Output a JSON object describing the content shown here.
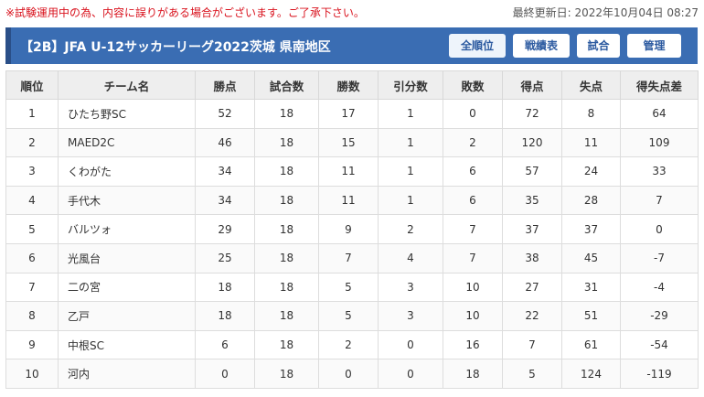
{
  "notice": "※試験運用中の為、内容に誤りがある場合がございます。ご了承下さい。",
  "last_updated": "最終更新日: 2022年10月04日 08:27",
  "header": {
    "title": "【2B】JFA U-12サッカーリーグ2022茨城 県南地区",
    "buttons": {
      "all": "全順位",
      "results": "戦績表",
      "matches": "試合",
      "admin": "管理"
    }
  },
  "table": {
    "columns": [
      "順位",
      "チーム名",
      "勝点",
      "試合数",
      "勝数",
      "引分数",
      "敗数",
      "得点",
      "失点",
      "得失点差"
    ],
    "rows": [
      {
        "rank": "1",
        "team": "ひたち野SC",
        "points": "52",
        "played": "18",
        "wins": "17",
        "draws": "1",
        "losses": "0",
        "gf": "72",
        "ga": "8",
        "gd": "64"
      },
      {
        "rank": "2",
        "team": "MAED2C",
        "points": "46",
        "played": "18",
        "wins": "15",
        "draws": "1",
        "losses": "2",
        "gf": "120",
        "ga": "11",
        "gd": "109"
      },
      {
        "rank": "3",
        "team": "くわがた",
        "points": "34",
        "played": "18",
        "wins": "11",
        "draws": "1",
        "losses": "6",
        "gf": "57",
        "ga": "24",
        "gd": "33"
      },
      {
        "rank": "4",
        "team": "手代木",
        "points": "34",
        "played": "18",
        "wins": "11",
        "draws": "1",
        "losses": "6",
        "gf": "35",
        "ga": "28",
        "gd": "7"
      },
      {
        "rank": "5",
        "team": "バルツォ",
        "points": "29",
        "played": "18",
        "wins": "9",
        "draws": "2",
        "losses": "7",
        "gf": "37",
        "ga": "37",
        "gd": "0"
      },
      {
        "rank": "6",
        "team": "光風台",
        "points": "25",
        "played": "18",
        "wins": "7",
        "draws": "4",
        "losses": "7",
        "gf": "38",
        "ga": "45",
        "gd": "-7"
      },
      {
        "rank": "7",
        "team": "二の宮",
        "points": "18",
        "played": "18",
        "wins": "5",
        "draws": "3",
        "losses": "10",
        "gf": "27",
        "ga": "31",
        "gd": "-4"
      },
      {
        "rank": "8",
        "team": "乙戸",
        "points": "18",
        "played": "18",
        "wins": "5",
        "draws": "3",
        "losses": "10",
        "gf": "22",
        "ga": "51",
        "gd": "-29"
      },
      {
        "rank": "9",
        "team": "中根SC",
        "points": "6",
        "played": "18",
        "wins": "2",
        "draws": "0",
        "losses": "16",
        "gf": "7",
        "ga": "61",
        "gd": "-54"
      },
      {
        "rank": "10",
        "team": "河内",
        "points": "0",
        "played": "18",
        "wins": "0",
        "draws": "0",
        "losses": "18",
        "gf": "5",
        "ga": "124",
        "gd": "-119"
      }
    ]
  },
  "colors": {
    "header_bg": "#3a6db3",
    "notice": "#d9131e",
    "button_text": "#2c5aa0"
  }
}
